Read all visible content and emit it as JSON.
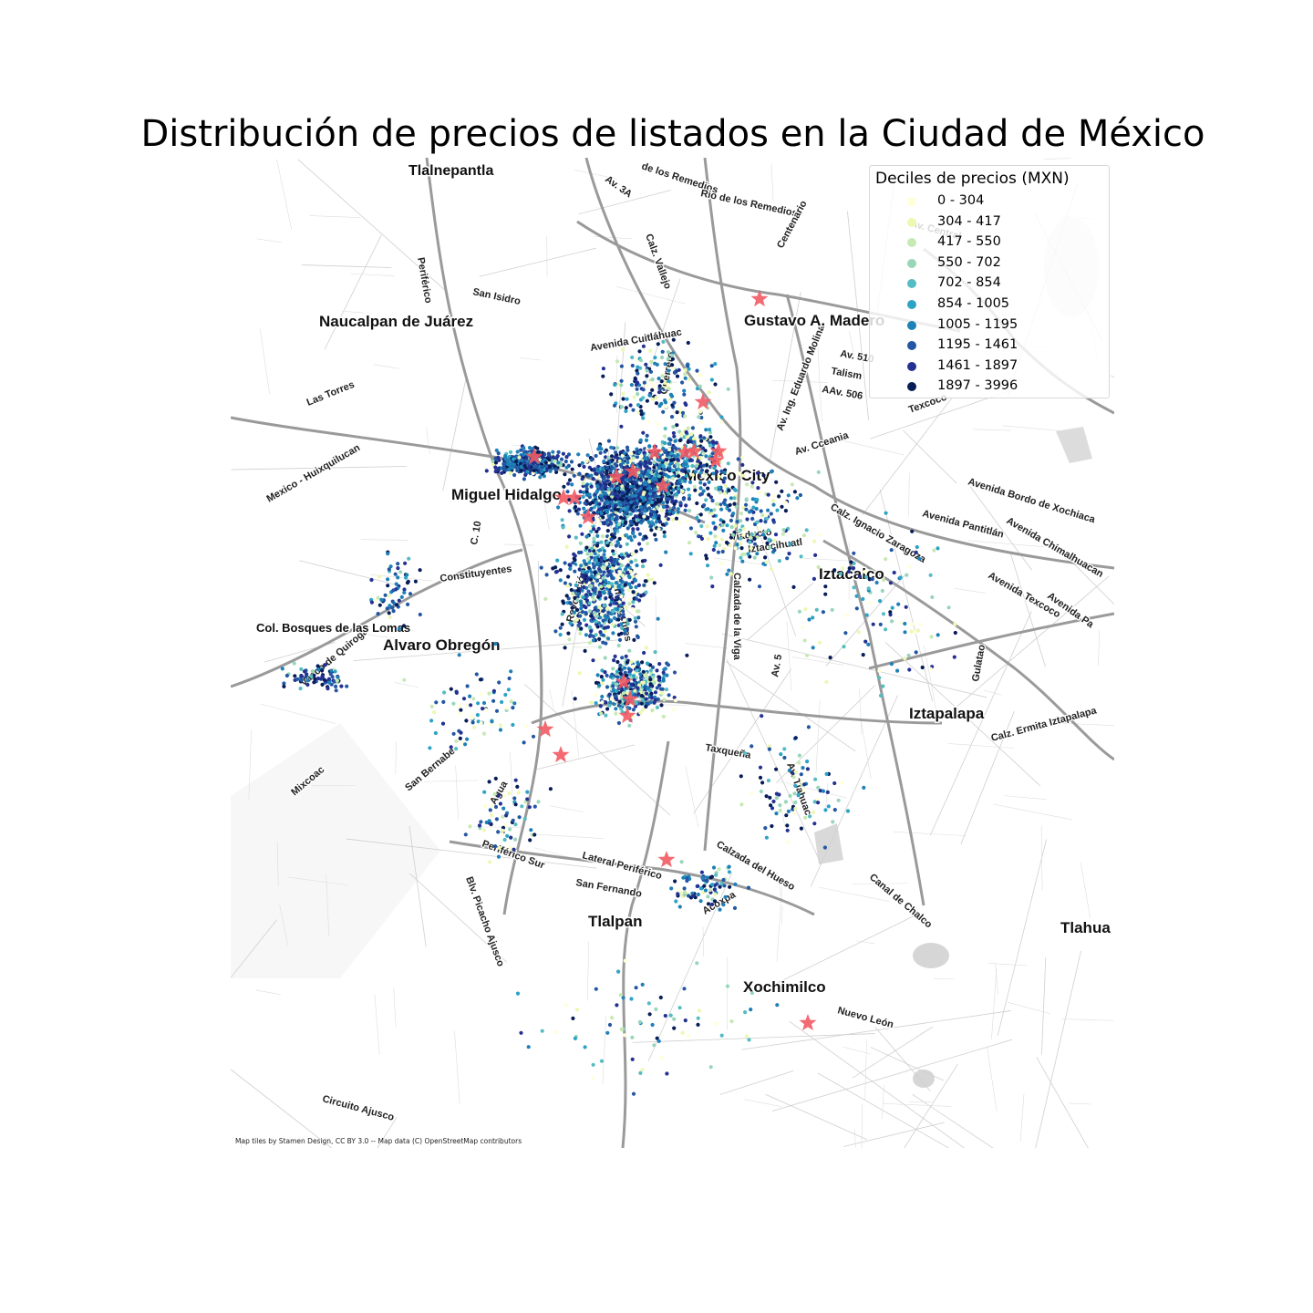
{
  "title": "Distribución de precios de listados en la Ciudad de México",
  "legend": {
    "title": "Deciles de precios (MXN)",
    "items": [
      {
        "label": "0 - 304",
        "color": "#ffffd9"
      },
      {
        "label": "304 - 417",
        "color": "#edf8b1"
      },
      {
        "label": "417 - 550",
        "color": "#c7e9b4"
      },
      {
        "label": "550 - 702",
        "color": "#98d6b9"
      },
      {
        "label": "702 - 854",
        "color": "#54bcc2"
      },
      {
        "label": "854 - 1005",
        "color": "#2ca3c5"
      },
      {
        "label": "1005 - 1195",
        "color": "#1f80b8"
      },
      {
        "label": "1195 - 1461",
        "color": "#2357a3"
      },
      {
        "label": "1461 - 1897",
        "color": "#243192"
      },
      {
        "label": "1897 - 3996",
        "color": "#081d58"
      }
    ]
  },
  "marker_color": "#f25a64",
  "attribution": "Map tiles by Stamen Design, CC BY 3.0 -- Map data (C) OpenStreetMap contributors",
  "place_labels": [
    "Tlalnepantla",
    "Naucalpan de Juárez",
    "Gustavo A. Madero",
    "Miguel Hidalgo",
    "Mexico City",
    "Iztacalco",
    "Alvaro Obregón",
    "Col. Bosques de las Lomas",
    "Iztapalapa",
    "Tlalpan",
    "Xochimilco",
    "Tlahua"
  ],
  "street_labels": [
    "Av. 3A",
    "de los Remedios",
    "Rio de los Remedios",
    "Calz. Vallejo",
    "Periférico",
    "San Isidro",
    "Centenario",
    "Avenida Cuitláhuac",
    "Av. Ing. Eduardo Molina",
    "Av. 510",
    "Talism",
    "AAv. 506",
    "Las Torres",
    "Texcoco",
    "Av. Cceania",
    "Mexico - Huixquilucan",
    "C. 10",
    "Constituyentes",
    "Viaducto",
    "Iztaccihuatl",
    "Calzada de la Viga",
    "Calz. Ignacio Zaragoza",
    "Avenida Bordo de Xochiaca",
    "Avenida Pantitlán",
    "Avenida Chimalhuacan",
    "Avenida Texcoco",
    "Avenida Pa",
    "Revolución",
    "Insurgentes",
    "Av. 5",
    "Gulatao",
    "Calz. Ermita Iztapalapa",
    "Vasco de Quiroga",
    "Mixcoac",
    "San Bernabe",
    "Agua",
    "Taxqueña",
    "Av. Tlahuac",
    "Periférico Sur",
    "Lateral Periférico",
    "San Fernando",
    "Calzada del Hueso",
    "Acoxpa",
    "Canal de Chalco",
    "Nuevo León",
    "Circuito Ajusco",
    "Blv. Picacho Ajusco",
    "Av. Central",
    "Guerrero"
  ]
}
